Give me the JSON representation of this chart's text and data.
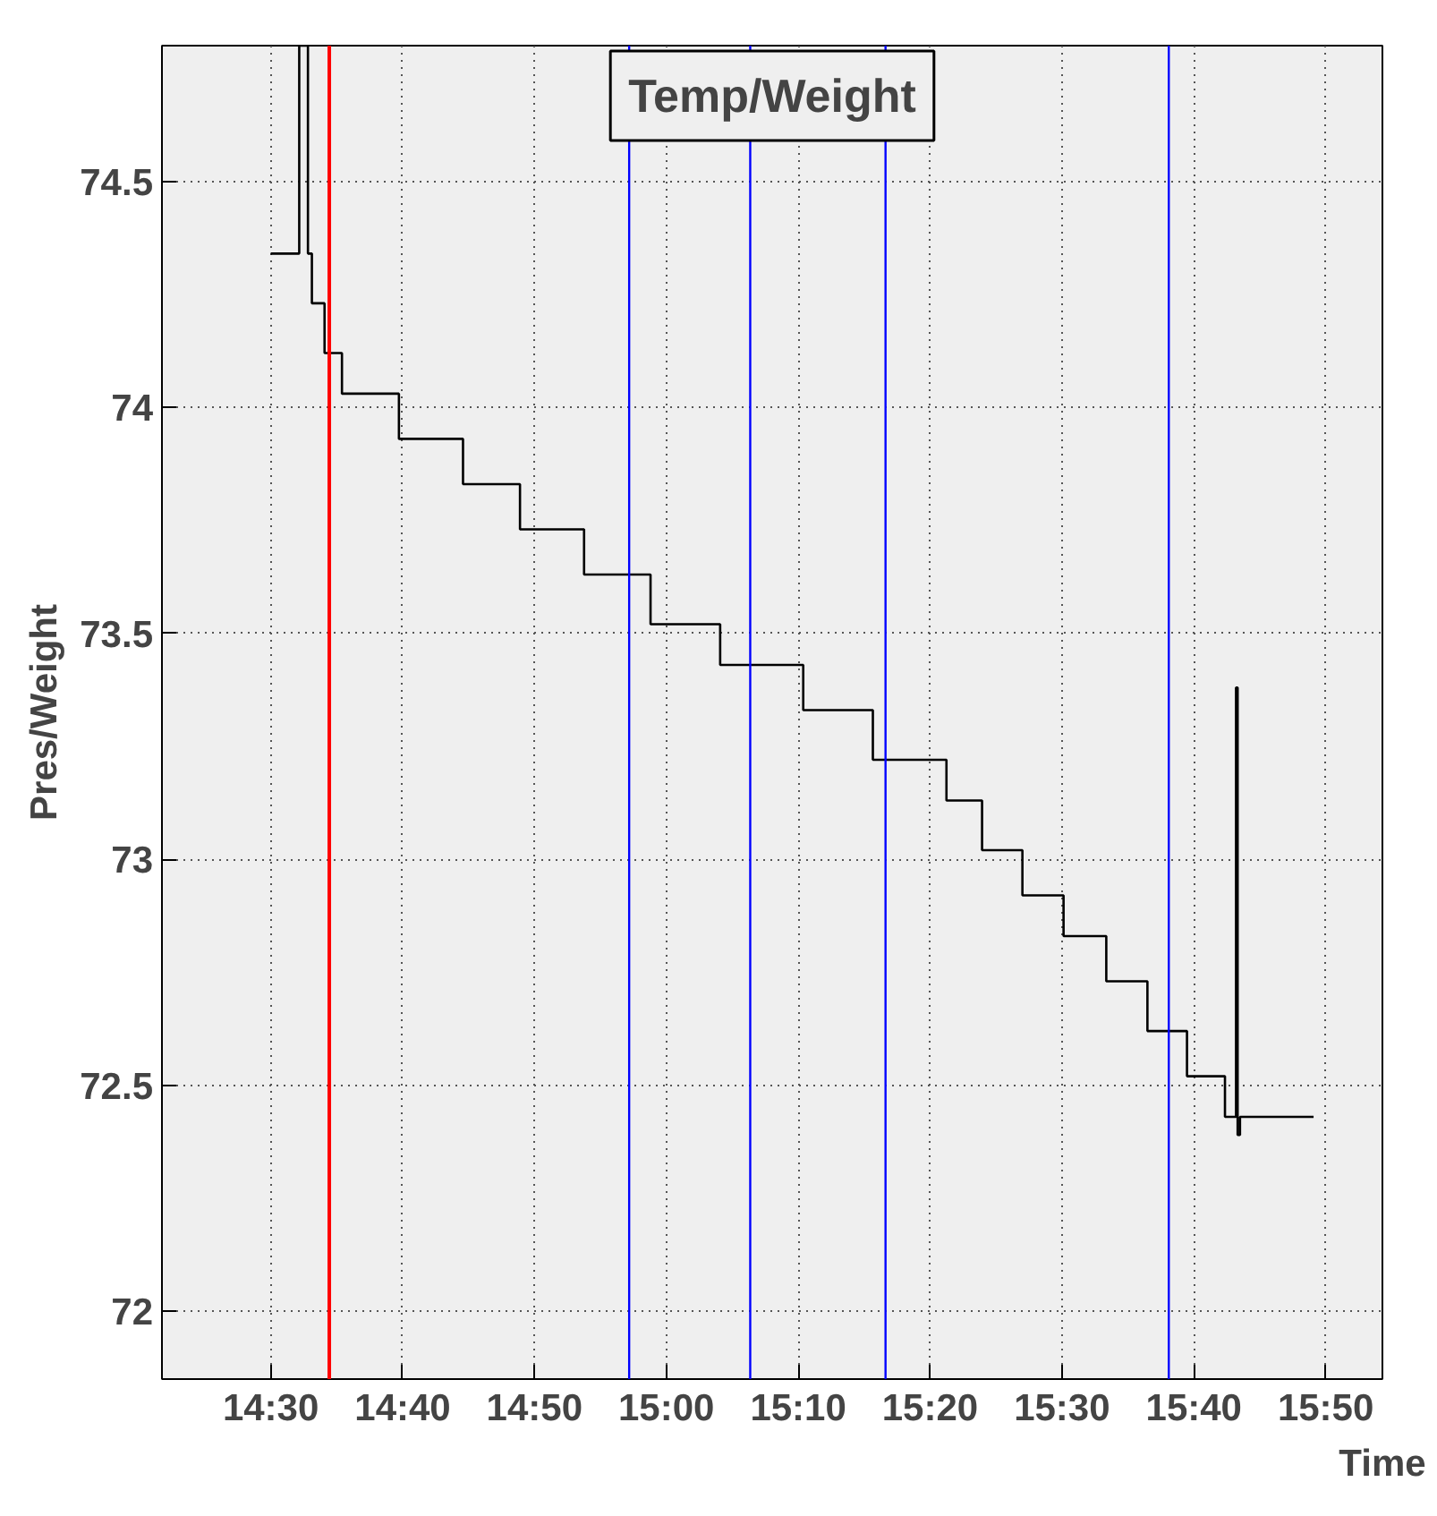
{
  "chart_data": {
    "type": "step",
    "title": "Temp/Weight",
    "xlabel": "Time",
    "ylabel": "Pres/Weight",
    "xlim": [
      14.3625,
      15.905
    ],
    "ylim": [
      71.85,
      74.8
    ],
    "xticks": [
      {
        "value": 14.5,
        "label": "14:30"
      },
      {
        "value": 14.6667,
        "label": "14:40"
      },
      {
        "value": 14.8333,
        "label": "14:50"
      },
      {
        "value": 15.0,
        "label": "15:00"
      },
      {
        "value": 15.1667,
        "label": "15:10"
      },
      {
        "value": 15.3333,
        "label": "15:20"
      },
      {
        "value": 15.5,
        "label": "15:30"
      },
      {
        "value": 15.6667,
        "label": "15:40"
      },
      {
        "value": 15.8333,
        "label": "15:50"
      }
    ],
    "yticks": [
      72,
      72.5,
      73,
      73.5,
      74,
      74.5
    ],
    "grid": true,
    "line_style": "solid",
    "marker": "none",
    "series": [
      {
        "color": "#000000",
        "x": [
          14.5,
          14.536,
          14.547,
          14.552,
          14.568,
          14.59,
          14.662,
          14.743,
          14.815,
          14.896,
          14.98,
          15.068,
          15.173,
          15.261,
          15.354,
          15.399,
          15.45,
          15.502,
          15.556,
          15.608,
          15.658,
          15.706,
          15.72,
          15.722,
          15.725,
          15.818
        ],
        "values": [
          74.34,
          74.8,
          74.34,
          74.23,
          74.12,
          74.03,
          73.93,
          73.83,
          73.73,
          73.63,
          73.52,
          73.43,
          73.33,
          73.22,
          73.13,
          73.02,
          72.92,
          72.83,
          72.73,
          72.62,
          72.52,
          72.43,
          73.38,
          72.39,
          72.43,
          72.43
        ]
      }
    ],
    "ref_lines": [
      {
        "axis": "x",
        "value": 14.574,
        "color": "#ff0000"
      },
      {
        "axis": "x",
        "value": 14.953,
        "color": "#0000ff"
      },
      {
        "axis": "x",
        "value": 15.106,
        "color": "#0000ff"
      },
      {
        "axis": "x",
        "value": 15.277,
        "color": "#0000ff"
      },
      {
        "axis": "x",
        "value": 15.635,
        "color": "#0000ff"
      }
    ]
  }
}
